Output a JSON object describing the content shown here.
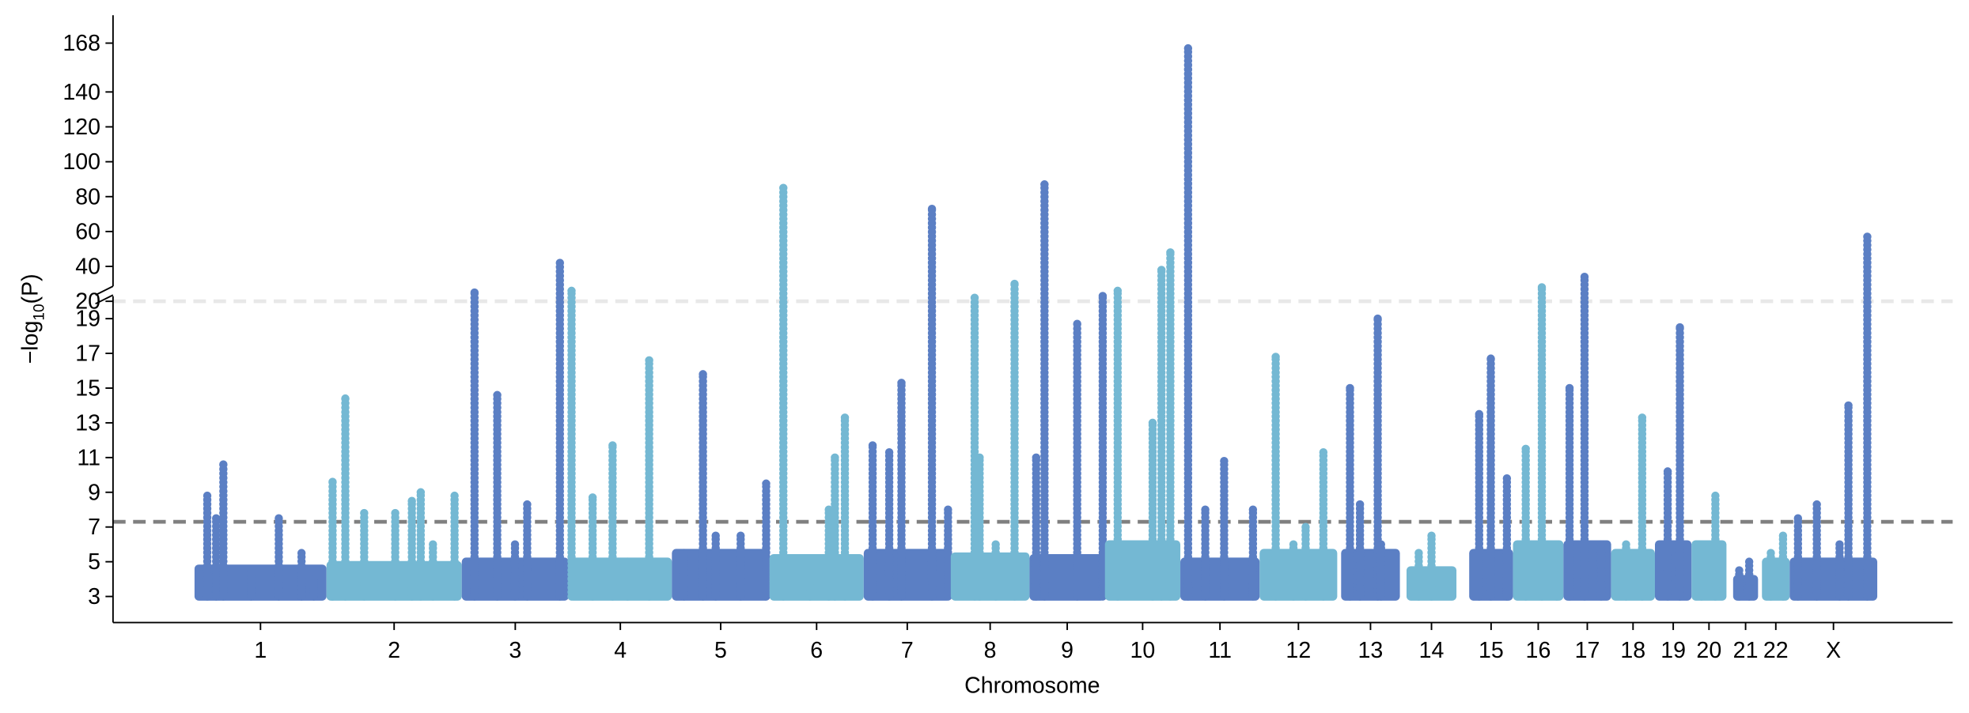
{
  "chart_data": {
    "type": "manhattan",
    "xlabel": "Chromosome",
    "ylabel": [
      "−log",
      "10",
      "(P)"
    ],
    "categories": [
      "1",
      "2",
      "3",
      "4",
      "5",
      "6",
      "7",
      "8",
      "9",
      "10",
      "11",
      "12",
      "13",
      "14",
      "15",
      "16",
      "17",
      "18",
      "19",
      "20",
      "21",
      "22",
      "X"
    ],
    "bounds": [
      [
        0,
        238
      ],
      [
        238,
        482
      ],
      [
        482,
        675
      ],
      [
        675,
        861
      ],
      [
        861,
        1037
      ],
      [
        1037,
        1207
      ],
      [
        1207,
        1364
      ],
      [
        1364,
        1506
      ],
      [
        1506,
        1642
      ],
      [
        1642,
        1778
      ],
      [
        1778,
        1921
      ],
      [
        1921,
        2061
      ],
      [
        2068,
        2174
      ],
      [
        2186,
        2276
      ],
      [
        2299,
        2378
      ],
      [
        2378,
        2469
      ],
      [
        2469,
        2555
      ],
      [
        2555,
        2634
      ],
      [
        2634,
        2700
      ],
      [
        2700,
        2763
      ],
      [
        2775,
        2820
      ],
      [
        2827,
        2877
      ],
      [
        2877,
        3035
      ]
    ],
    "colors": [
      "#5b7fc4",
      "#74b8d3"
    ],
    "background": [
      4.6,
      4.8,
      5,
      5,
      5.5,
      5.2,
      5.5,
      5.3,
      5.2,
      6,
      5,
      5.5,
      5.5,
      4.5,
      5.5,
      6,
      6,
      5.5,
      6,
      6,
      4,
      5,
      5
    ],
    "peaks": [
      {
        "x": [
          23,
          39,
          52,
          102,
          152,
          193,
          215
        ],
        "y": [
          8.8,
          7.5,
          10.6,
          4.5,
          7.5,
          5.5,
          4
        ]
      },
      {
        "x": [
          249,
          272,
          306,
          362,
          392,
          408,
          430,
          469
        ],
        "y": [
          9.6,
          14.4,
          7.8,
          7.8,
          8.5,
          9,
          6,
          8.8
        ]
      },
      {
        "x": [
          505,
          546,
          578,
          600,
          659
        ],
        "y": [
          25,
          14.6,
          6,
          8.3,
          42
        ]
      },
      {
        "x": [
          680,
          718,
          754,
          781,
          820
        ],
        "y": [
          26,
          8.7,
          11.7,
          5,
          16.6
        ]
      },
      {
        "x": [
          883,
          917,
          940,
          985,
          1031
        ],
        "y": [
          5.5,
          15.8,
          6.5,
          6.5,
          9.5
        ]
      },
      {
        "x": [
          1062,
          1110,
          1144,
          1155,
          1173
        ],
        "y": [
          85,
          5,
          8,
          11,
          13.3
        ]
      },
      {
        "x": [
          1223,
          1253,
          1275,
          1330,
          1359
        ],
        "y": [
          11.7,
          11.3,
          15.3,
          73,
          8
        ]
      },
      {
        "x": [
          1407,
          1416,
          1445,
          1479
        ],
        "y": [
          22,
          11,
          6,
          30
        ]
      },
      {
        "x": [
          1518,
          1533,
          1592,
          1638
        ],
        "y": [
          11,
          87,
          18.7,
          23
        ]
      },
      {
        "x": [
          1665,
          1728,
          1744,
          1760
        ],
        "y": [
          26,
          13,
          38,
          48
        ]
      },
      {
        "x": [
          1792,
          1823,
          1857,
          1909
        ],
        "y": [
          165,
          8,
          10.8,
          8
        ]
      },
      {
        "x": [
          1950,
          1982,
          2004,
          2036
        ],
        "y": [
          16.8,
          6,
          7,
          11.3
        ]
      },
      {
        "x": [
          2084,
          2102,
          2134,
          2140
        ],
        "y": [
          15,
          8.3,
          19,
          6
        ]
      },
      {
        "x": [
          2208,
          2231
        ],
        "y": [
          5.5,
          6.5
        ]
      },
      {
        "x": [
          2317,
          2338,
          2367
        ],
        "y": [
          13.5,
          16.7,
          9.8
        ]
      },
      {
        "x": [
          2401,
          2430,
          2457
        ],
        "y": [
          11.5,
          28,
          6
        ]
      },
      {
        "x": [
          2480,
          2507,
          2537
        ],
        "y": [
          15,
          34,
          6
        ]
      },
      {
        "x": [
          2582,
          2611
        ],
        "y": [
          6,
          13.3
        ]
      },
      {
        "x": [
          2657,
          2679
        ],
        "y": [
          10.2,
          18.5
        ]
      },
      {
        "x": [
          2718,
          2743
        ],
        "y": [
          6,
          8.8
        ]
      },
      {
        "x": [
          2786,
          2804
        ],
        "y": [
          4.5,
          5
        ]
      },
      {
        "x": [
          2843,
          2865
        ],
        "y": [
          5.5,
          6.5
        ]
      },
      {
        "x": [
          2892,
          2926,
          2967,
          2983,
          3017
        ],
        "y": [
          7.5,
          8.3,
          6,
          14,
          57
        ]
      }
    ],
    "xlim": [
      -147,
      3171
    ],
    "ylim": [
      1.5,
      184
    ],
    "ybreak": 20,
    "yticks": [
      3,
      5,
      7,
      9,
      11,
      13,
      15,
      17,
      19,
      20,
      40,
      60,
      80,
      100,
      120,
      140,
      168
    ],
    "thresholds": [
      {
        "value": 7.3,
        "color": "#808080"
      },
      {
        "value": 20,
        "color": "#e8e8e8"
      }
    ]
  }
}
